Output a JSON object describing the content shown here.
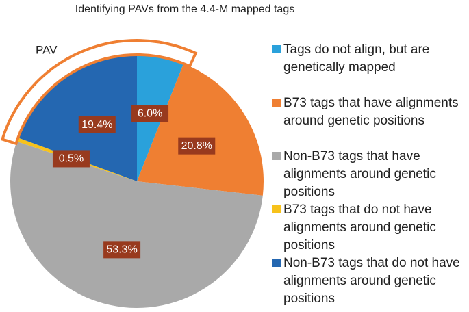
{
  "chart_data": {
    "type": "pie",
    "title": "Identifying PAVs from the 4.4-M mapped tags",
    "annotation": "PAV",
    "categories": [
      "Tags do not align, but are genetically mapped",
      "B73 tags that have alignments around genetic positions",
      "Non-B73 tags that have alignments around genetic positions",
      "B73 tags that do not have alignments around genetic positions",
      "Non-B73 tags that do not have alignments around genetic positions"
    ],
    "values": [
      6.0,
      20.8,
      53.3,
      0.5,
      19.4
    ],
    "value_labels": [
      "6.0%",
      "20.8%",
      "53.3%",
      "0.5%",
      "19.4%"
    ],
    "colors": [
      "#2aa1db",
      "#ef7f32",
      "#a9a9a9",
      "#f7c21b",
      "#2467b1"
    ]
  }
}
